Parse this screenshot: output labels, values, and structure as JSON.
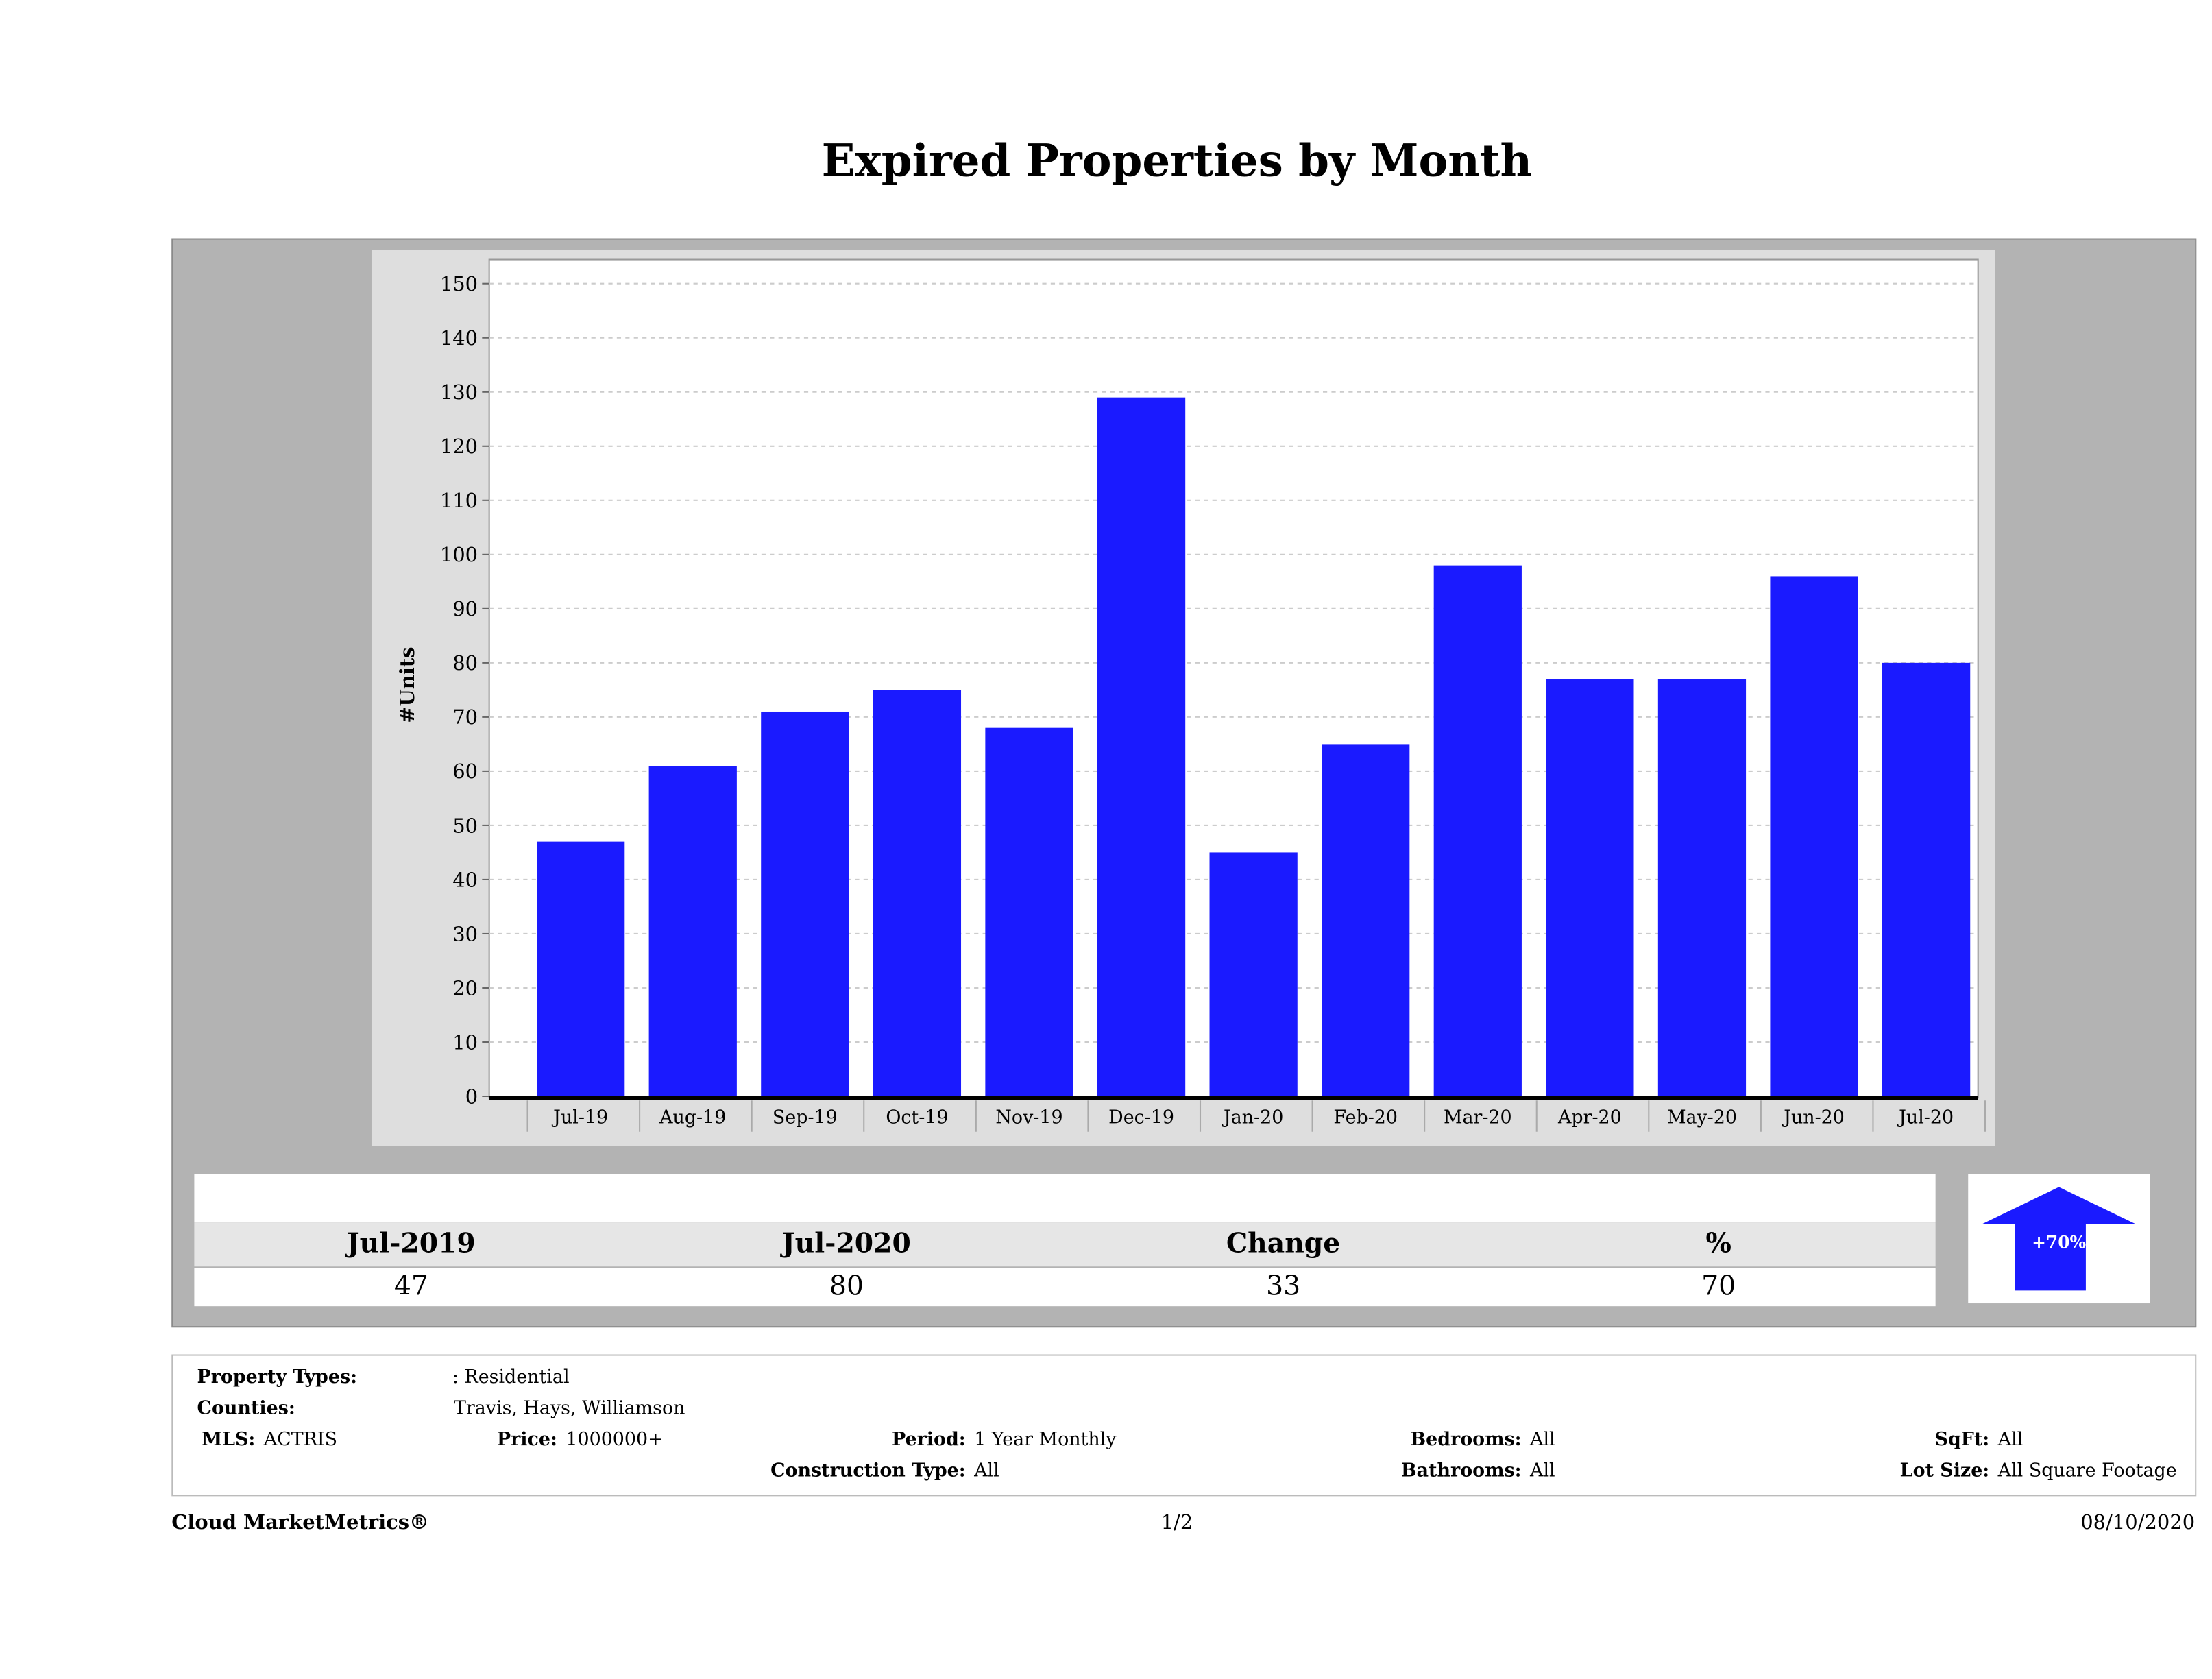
{
  "chart_data": {
    "type": "bar",
    "title": "Expired Properties by Month",
    "xlabel": "",
    "ylabel": "#Units",
    "ylim": [
      0,
      150
    ],
    "yticks": [
      0,
      10,
      20,
      30,
      40,
      50,
      60,
      70,
      80,
      90,
      100,
      110,
      120,
      130,
      140,
      150
    ],
    "grid": true,
    "bar_color": "#1a1aff",
    "categories": [
      "Jul-19",
      "Aug-19",
      "Sep-19",
      "Oct-19",
      "Nov-19",
      "Dec-19",
      "Jan-20",
      "Feb-20",
      "Mar-20",
      "Apr-20",
      "May-20",
      "Jun-20",
      "Jul-20"
    ],
    "values": [
      47,
      61,
      71,
      75,
      68,
      129,
      45,
      65,
      98,
      77,
      77,
      96,
      80
    ]
  },
  "summary": {
    "headers": [
      "Jul-2019",
      "Jul-2020",
      "Change",
      "%"
    ],
    "values": [
      "47",
      "80",
      "33",
      "70"
    ],
    "badge": "+70%",
    "badge_direction": "up"
  },
  "filters": {
    "property_types_label": "Property Types:",
    "property_types_value": ": Residential",
    "counties_label": "Counties:",
    "counties_value": "Travis, Hays, Williamson",
    "mls_label": "MLS:",
    "mls_value": "ACTRIS",
    "price_label": "Price:",
    "price_value": "1000000+",
    "period_label": "Period:",
    "period_value": "1 Year Monthly",
    "construction_label": "Construction Type:",
    "construction_value": "All",
    "bedrooms_label": "Bedrooms:",
    "bedrooms_value": "All",
    "bathrooms_label": "Bathrooms:",
    "bathrooms_value": "All",
    "sqft_label": "SqFt:",
    "sqft_value": "All",
    "lotsize_label": "Lot Size:",
    "lotsize_value": "All Square Footage"
  },
  "footer": {
    "brand": "Cloud MarketMetrics®",
    "page": "1/2",
    "date": "08/10/2020"
  }
}
